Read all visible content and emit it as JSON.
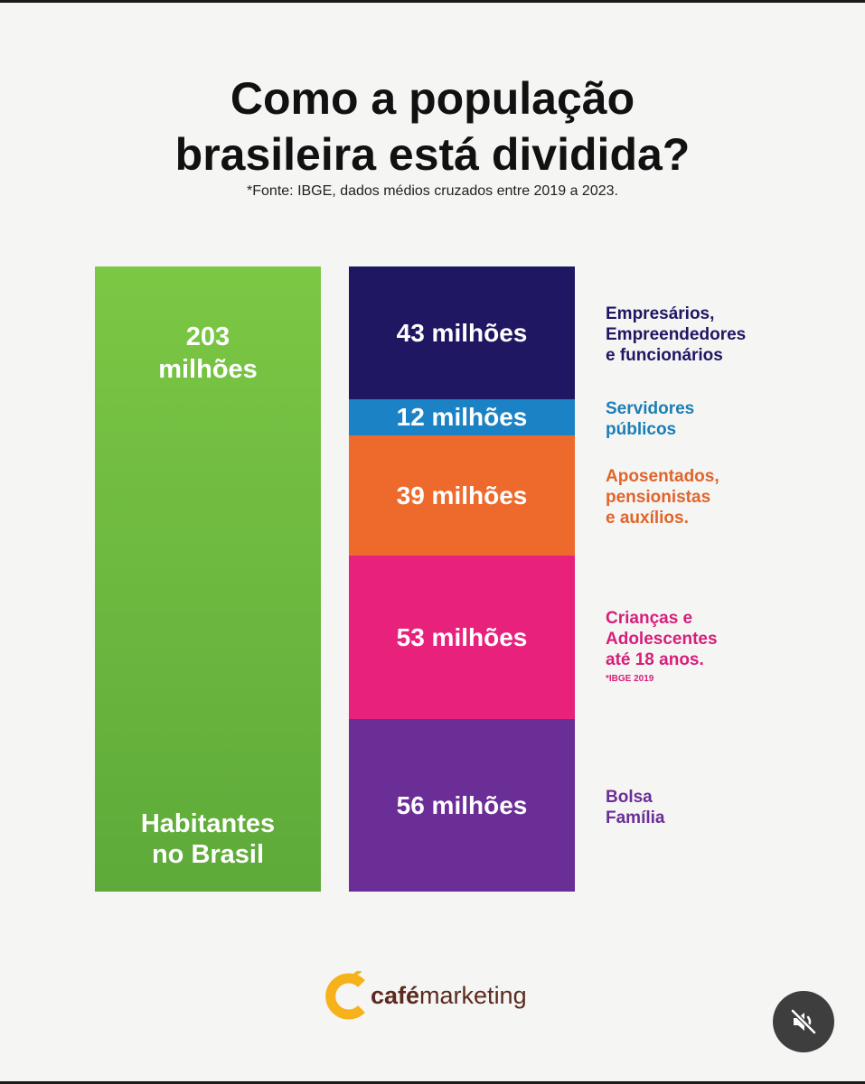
{
  "title": {
    "line1": "Como a população",
    "line2": "brasileira está dividida?"
  },
  "source_note": "*Fonte: IBGE, dados médios cruzados entre 2019 a 2023.",
  "chart_data": {
    "type": "bar",
    "title": "Como a população brasileira está dividida?",
    "total": {
      "value": 203,
      "value_label_line1": "203",
      "value_label_line2": "milhões",
      "caption_line1": "Habitantes",
      "caption_line2": "no Brasil",
      "color": "#6dbb3f"
    },
    "categories": [
      "Empresários, Empreendedores e funcionários",
      "Servidores públicos",
      "Aposentados, pensionistas e auxílios.",
      "Crianças e Adolescentes até 18 anos.",
      "Bolsa Família"
    ],
    "values": [
      43,
      12,
      39,
      53,
      56
    ],
    "unit": "milhões",
    "segments": [
      {
        "value": 43,
        "value_label": "43 milhões",
        "label": "Empresários,\nEmpreendedores\ne funcionários",
        "color": "#1f1762",
        "text_color": "#1f1762",
        "note": ""
      },
      {
        "value": 12,
        "value_label": "12 milhões",
        "label": "Servidores\npúblicos",
        "color": "#1b83c5",
        "text_color": "#1b7fb5",
        "note": ""
      },
      {
        "value": 39,
        "value_label": "39 milhões",
        "label": "Aposentados,\npensionistas\ne auxílios.",
        "color": "#ee6a2c",
        "text_color": "#e0652b",
        "note": ""
      },
      {
        "value": 53,
        "value_label": "53 milhões",
        "label": "Crianças e\nAdolescentes\naté 18 anos.",
        "color": "#e8217c",
        "text_color": "#d61f7a",
        "note": "*IBGE 2019"
      },
      {
        "value": 56,
        "value_label": "56 milhões",
        "label": "Bolsa\nFamília",
        "color": "#6a2e96",
        "text_color": "#6a2e96",
        "note": ""
      }
    ]
  },
  "logo": {
    "brand_bold": "café",
    "brand_regular": "marketing",
    "icon": "cafe-c-logo-icon",
    "colors": {
      "icon": "#f6b21a",
      "text": "#5b2a1e"
    }
  },
  "mute_button": {
    "icon": "speaker-muted-icon"
  }
}
